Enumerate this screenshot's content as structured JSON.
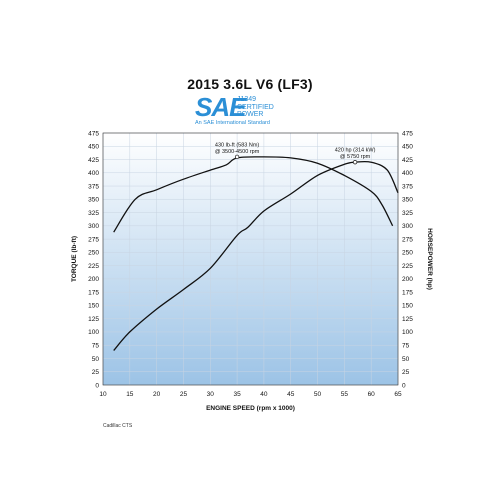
{
  "chart_data": {
    "type": "line",
    "title": "2015 3.6L V6 (LF3)",
    "logo": {
      "mark": "SAE",
      "line1": "J1349",
      "line2": "CERTIFIED",
      "line3": "POWER",
      "tagline": "An SAE International Standard"
    },
    "xlabel": "ENGINE SPEED (rpm x 1000)",
    "ylabel_left": "TORQUE (lb-ft)",
    "ylabel_right": "HORSEPOWER (hp)",
    "xlim": [
      10,
      65
    ],
    "ylim": [
      0,
      475
    ],
    "x_ticks": [
      10,
      15,
      20,
      25,
      30,
      35,
      40,
      45,
      50,
      55,
      60,
      65
    ],
    "y_ticks": [
      0,
      25,
      50,
      75,
      100,
      125,
      150,
      175,
      200,
      225,
      250,
      275,
      300,
      325,
      350,
      375,
      400,
      425,
      450,
      475
    ],
    "grid": true,
    "background": "vertical gradient, white to light blue",
    "series": [
      {
        "key": "torque",
        "x": [
          12,
          16,
          20,
          25,
          30,
          33,
          35,
          40,
          45,
          50,
          55,
          60,
          62,
          64
        ],
        "values": [
          288,
          350,
          368,
          388,
          405,
          415,
          428,
          430,
          428,
          418,
          395,
          365,
          340,
          300
        ]
      },
      {
        "key": "horsepower",
        "x": [
          12,
          15,
          20,
          25,
          30,
          35,
          37,
          40,
          45,
          50,
          55,
          57,
          60,
          63,
          65
        ],
        "values": [
          65,
          100,
          143,
          180,
          220,
          282,
          297,
          328,
          360,
          395,
          416,
          420,
          420,
          405,
          362
        ]
      }
    ],
    "annotations": [
      {
        "series": "torque",
        "x": 35,
        "y": 430,
        "lines": [
          "430 lb-ft (583 Nm)",
          "@ 3500-4500 rpm"
        ]
      },
      {
        "series": "horsepower",
        "x": 57,
        "y": 420,
        "lines": [
          "420 hp (314 kW)",
          "@ 5750 rpm"
        ]
      }
    ],
    "line_color": "#111111",
    "gradient_top": "#ffffff",
    "gradient_bottom": "#9cc3e6",
    "grid_color": "#c8d4e2"
  },
  "footnote": "Cadillac CTS"
}
